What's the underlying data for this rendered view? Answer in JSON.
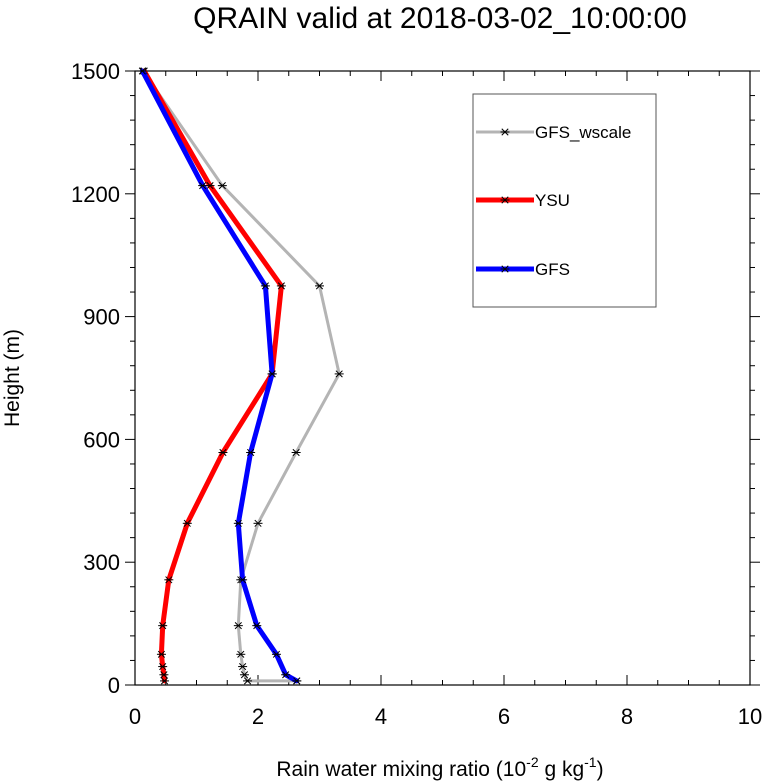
{
  "chart_data": {
    "type": "line",
    "title": "QRAIN valid at 2018-03-02_10:00:00",
    "xlabel": {
      "base": "Rain water mixing ratio (10",
      "exp1": "-2",
      "mid": " g kg",
      "exp2": "-1",
      "end": ")"
    },
    "ylabel": "Height (m)",
    "xlim": [
      0,
      10
    ],
    "ylim": [
      0,
      1500
    ],
    "xticks": [
      0,
      2,
      4,
      6,
      8,
      10
    ],
    "yticks": [
      0,
      300,
      600,
      900,
      1200,
      1500
    ],
    "grid": false,
    "legend": "top-right",
    "series": [
      {
        "name": "GFS_wscale",
        "color": "#b4b4b4",
        "points": [
          [
            2.63,
            10
          ],
          [
            1.83,
            10
          ],
          [
            1.78,
            25
          ],
          [
            1.75,
            45
          ],
          [
            1.72,
            75
          ],
          [
            1.68,
            145
          ],
          [
            1.72,
            257
          ],
          [
            2.0,
            395
          ],
          [
            2.62,
            568
          ],
          [
            3.32,
            760
          ],
          [
            3.0,
            975
          ],
          [
            1.42,
            1220
          ],
          [
            0.13,
            1500
          ]
        ]
      },
      {
        "name": "YSU",
        "color": "#ff0000",
        "points": [
          [
            0.48,
            10
          ],
          [
            0.47,
            25
          ],
          [
            0.45,
            45
          ],
          [
            0.43,
            75
          ],
          [
            0.45,
            145
          ],
          [
            0.55,
            257
          ],
          [
            0.85,
            395
          ],
          [
            1.43,
            568
          ],
          [
            2.23,
            760
          ],
          [
            2.38,
            975
          ],
          [
            1.22,
            1220
          ],
          [
            0.15,
            1500
          ]
        ]
      },
      {
        "name": "GFS",
        "color": "#0000ff",
        "points": [
          [
            2.63,
            10
          ],
          [
            2.45,
            25
          ],
          [
            2.3,
            75
          ],
          [
            1.98,
            145
          ],
          [
            1.75,
            257
          ],
          [
            1.68,
            395
          ],
          [
            1.88,
            568
          ],
          [
            2.23,
            760
          ],
          [
            2.12,
            975
          ],
          [
            1.1,
            1220
          ],
          [
            0.12,
            1500
          ]
        ]
      }
    ]
  }
}
